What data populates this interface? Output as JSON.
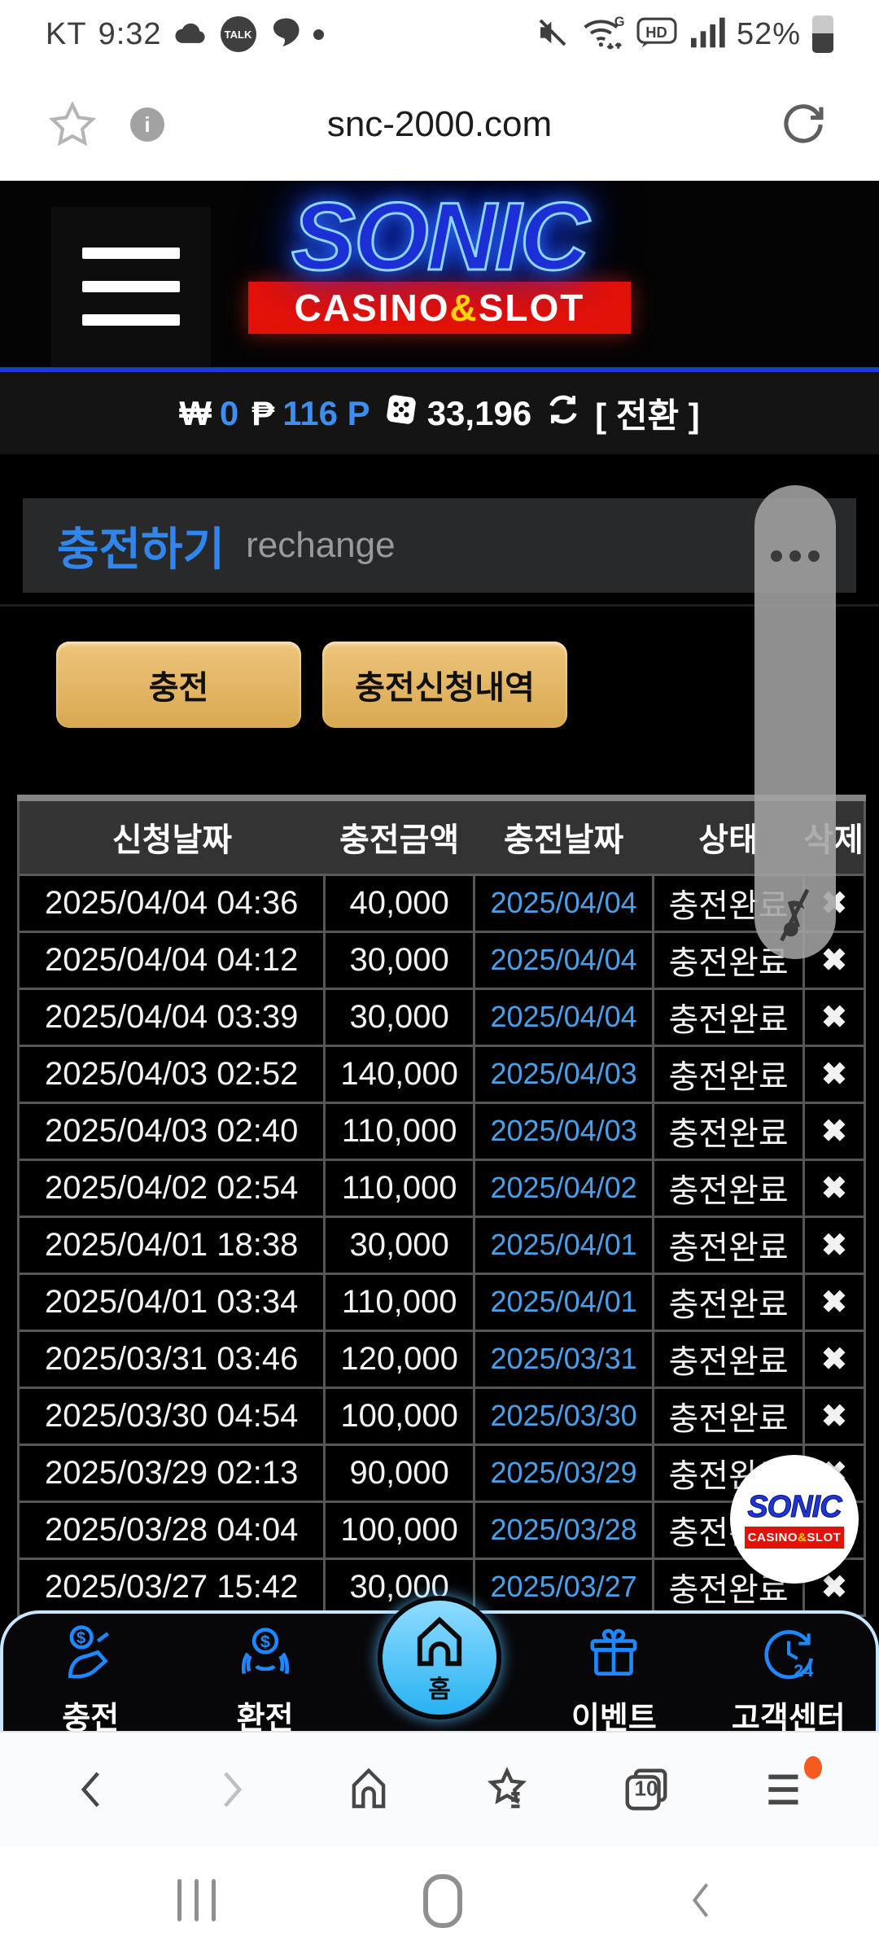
{
  "status_bar": {
    "carrier": "KT",
    "time": "9:32",
    "talk_badge": "TALK",
    "battery_percent": "52%"
  },
  "browser": {
    "url": "snc-2000.com",
    "tab_count": "10"
  },
  "header": {
    "logo_main": "SONIC",
    "logo_casino": "CASINO",
    "logo_amp": "&",
    "logo_slot": "SLOT"
  },
  "balance_bar": {
    "krw_symbol": "₩",
    "krw_value": "0",
    "php_symbol": "₱",
    "php_value": "116 P",
    "coin_value": "33,196",
    "convert_label": "[ 전환 ]"
  },
  "page": {
    "title": "충전하기",
    "subtitle": "rechange"
  },
  "actions": {
    "recharge_label": "충전",
    "history_label": "충전신청내역"
  },
  "table": {
    "headers": [
      "신청날짜",
      "충전금액",
      "충전날짜",
      "상태",
      "삭제"
    ],
    "rows": [
      {
        "apply": "2025/04/04 04:36",
        "amount": "40,000",
        "date": "2025/04/04",
        "status": "충전완료",
        "del": "✖"
      },
      {
        "apply": "2025/04/04 04:12",
        "amount": "30,000",
        "date": "2025/04/04",
        "status": "충전완료",
        "del": "✖"
      },
      {
        "apply": "2025/04/04 03:39",
        "amount": "30,000",
        "date": "2025/04/04",
        "status": "충전완료",
        "del": "✖"
      },
      {
        "apply": "2025/04/03 02:52",
        "amount": "140,000",
        "date": "2025/04/03",
        "status": "충전완료",
        "del": "✖"
      },
      {
        "apply": "2025/04/03 02:40",
        "amount": "110,000",
        "date": "2025/04/03",
        "status": "충전완료",
        "del": "✖"
      },
      {
        "apply": "2025/04/02 02:54",
        "amount": "110,000",
        "date": "2025/04/02",
        "status": "충전완료",
        "del": "✖"
      },
      {
        "apply": "2025/04/01 18:38",
        "amount": "30,000",
        "date": "2025/04/01",
        "status": "충전완료",
        "del": "✖"
      },
      {
        "apply": "2025/04/01 03:34",
        "amount": "110,000",
        "date": "2025/04/01",
        "status": "충전완료",
        "del": "✖"
      },
      {
        "apply": "2025/03/31 03:46",
        "amount": "120,000",
        "date": "2025/03/31",
        "status": "충전완료",
        "del": "✖"
      },
      {
        "apply": "2025/03/30 04:54",
        "amount": "100,000",
        "date": "2025/03/30",
        "status": "충전완료",
        "del": "✖"
      },
      {
        "apply": "2025/03/29 02:13",
        "amount": "90,000",
        "date": "2025/03/29",
        "status": "충전완료",
        "del": "✖"
      },
      {
        "apply": "2025/03/28 04:04",
        "amount": "100,000",
        "date": "2025/03/28",
        "status": "충전완료",
        "del": "✖"
      },
      {
        "apply": "2025/03/27 15:42",
        "amount": "30,000",
        "date": "2025/03/27",
        "status": "충전완료",
        "del": "✖"
      }
    ]
  },
  "floating_logo": {
    "main": "SONIC",
    "casino": "CASINO",
    "amp": "&",
    "slot": "SLOT"
  },
  "bottom_nav": {
    "items": [
      {
        "label": "충전"
      },
      {
        "label": "환전"
      },
      {
        "label": "홈"
      },
      {
        "label": "이벤트"
      },
      {
        "label": "고객센터"
      }
    ],
    "support_badge": "24"
  },
  "colors": {
    "accent_blue": "#3086ec",
    "date_blue": "#4aa0e8",
    "nav_blue": "#1e88ff",
    "button_tan": "#e2b368",
    "logo_red": "#e31208",
    "amp_yellow": "#ffd400",
    "alert_orange": "#f55a1e"
  }
}
